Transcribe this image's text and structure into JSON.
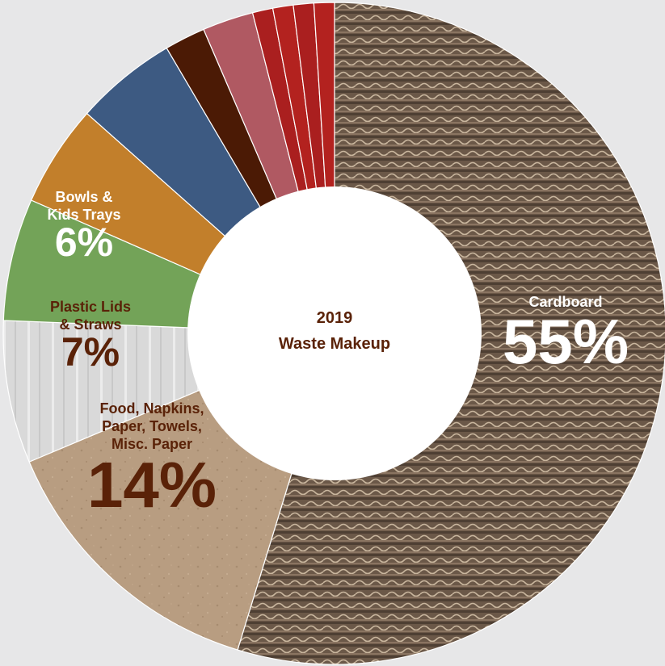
{
  "chart_data": {
    "type": "pie",
    "title": "2019",
    "subtitle": "Waste Makeup",
    "slices": [
      {
        "label": "Cardboard",
        "value": 55,
        "display": "55%",
        "color": "#6e5b4b",
        "label_lines": [
          "Cardboard"
        ]
      },
      {
        "label": "Food, Napkins, Paper, Towels, Misc. Paper",
        "value": 14,
        "display": "14%",
        "color": "#b79c80",
        "label_lines": [
          "Food, Napkins,",
          "Paper, Towels,",
          "Misc. Paper"
        ]
      },
      {
        "label": "Plastic Lids & Straws",
        "value": 7,
        "display": "7%",
        "color": "#dcdcdc",
        "label_lines": [
          "Plastic Lids",
          "& Straws"
        ]
      },
      {
        "label": "Bowls & Kids Trays",
        "value": 6,
        "display": "6%",
        "color": "#73a358",
        "label_lines": [
          "Bowls &",
          "Kids Trays"
        ]
      },
      {
        "label": "",
        "value": 5,
        "display": "",
        "color": "#c27f2b",
        "label_lines": []
      },
      {
        "label": "",
        "value": 5,
        "display": "",
        "color": "#3d5a82",
        "label_lines": []
      },
      {
        "label": "",
        "value": 2,
        "display": "",
        "color": "#4b1a05",
        "label_lines": []
      },
      {
        "label": "",
        "value": 2.5,
        "display": "",
        "color": "#b05962",
        "label_lines": []
      },
      {
        "label": "",
        "value": 1,
        "display": "",
        "color": "#aa1f1f",
        "label_lines": []
      },
      {
        "label": "",
        "value": 1,
        "display": "",
        "color": "#b3221f",
        "label_lines": []
      },
      {
        "label": "",
        "value": 1,
        "display": "",
        "color": "#aa1f1f",
        "label_lines": []
      },
      {
        "label": "",
        "value": 1,
        "display": "",
        "color": "#b3221f",
        "label_lines": []
      }
    ],
    "legend": "none"
  }
}
